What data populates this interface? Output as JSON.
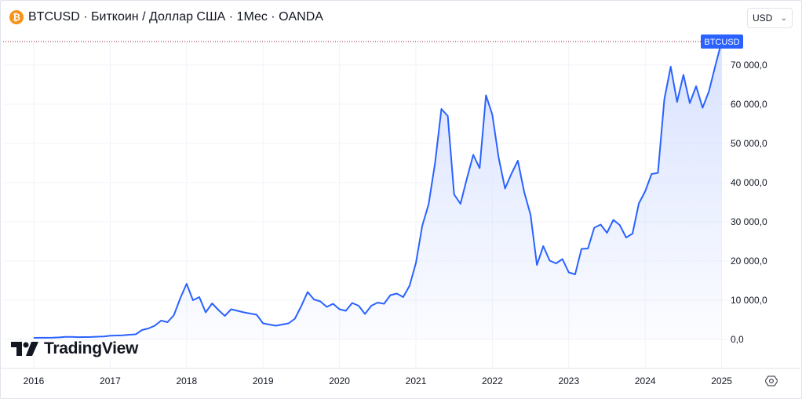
{
  "header": {
    "coin_symbol": "₿",
    "title": "BTCUSD · Биткоин / Доллар США · 1Мес · OANDA"
  },
  "currency": {
    "label": "USD"
  },
  "brand": {
    "name": "TradingView"
  },
  "price_badge": {
    "label": "BTCUSD"
  },
  "colors": {
    "line": "#2962ff",
    "fill_top": "#d6e0ff",
    "badge": "#2962ff",
    "grid": "#f0f3fa",
    "dotted": "#8b1a2b"
  },
  "icons": {
    "settings": "settings-gear-icon",
    "coin": "bitcoin-coin-icon",
    "dropdown": "chevron-down-icon"
  },
  "chart_data": {
    "type": "area",
    "title": "BTCUSD · Биткоин / Доллар США · 1Мес · OANDA",
    "xlabel": "",
    "ylabel": "",
    "x_ticks": [
      "2016",
      "2017",
      "2018",
      "2019",
      "2020",
      "2021",
      "2022",
      "2023",
      "2024",
      "2025"
    ],
    "y_ticks": [
      "0,0",
      "10 000,0",
      "20 000,0",
      "30 000,0",
      "40 000,0",
      "50 000,0",
      "60 000,0",
      "70 000,0"
    ],
    "ylim": [
      -3000,
      76000
    ],
    "xlim": [
      2016.0,
      2025.0
    ],
    "grid": true,
    "series": [
      {
        "start": "2016-01",
        "values": [
          400,
          420,
          410,
          440,
          520,
          650,
          640,
          580,
          600,
          620,
          700,
          750,
          950,
          1000,
          1050,
          1200,
          1300,
          2400,
          2800,
          3500,
          4800,
          4400,
          6200,
          10500,
          14200,
          10000,
          10800,
          6900,
          9200,
          7500,
          6000,
          7700,
          7300,
          6900,
          6600,
          6300,
          4100,
          3800,
          3500,
          3800,
          4100,
          5300,
          8500,
          12100,
          10200,
          9700,
          8300,
          9100,
          7700,
          7300,
          9300,
          8600,
          6500,
          8600,
          9400,
          9100,
          11300,
          11700,
          10800,
          13700,
          19500,
          29000,
          34500,
          45000,
          58800,
          57000,
          37000,
          34600,
          41000,
          47100,
          43700,
          62300,
          57300,
          46300,
          38500,
          42300,
          45600,
          37600,
          31800,
          19000,
          23800,
          20100,
          19400,
          20500,
          17100,
          16600,
          23100,
          23200,
          28500,
          29300,
          27200,
          30500,
          29200,
          26000,
          27000,
          34700,
          37800,
          42200,
          42500,
          61300,
          69600,
          60600,
          67500,
          60300,
          64600,
          59100,
          63300,
          69800,
          76000
        ]
      }
    ]
  }
}
